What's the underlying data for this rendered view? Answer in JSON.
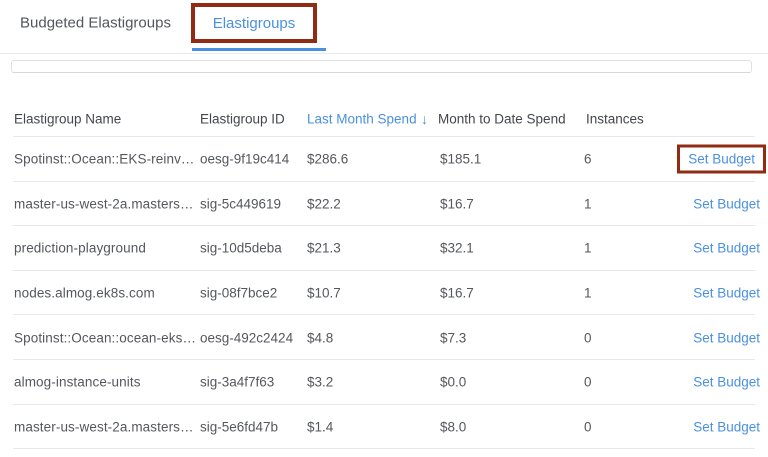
{
  "tabs": [
    {
      "label": "Budgeted Elastigroups",
      "active": false
    },
    {
      "label": "Elastigroups",
      "active": true,
      "annotated": true
    }
  ],
  "colors": {
    "accent_blue": "#4a90e2",
    "annotation_red": "#922b13"
  },
  "table": {
    "headers": {
      "name": "Elastigroup Name",
      "id": "Elastigroup ID",
      "last_month": "Last Month Spend",
      "sort_icon": "↓",
      "month_to_date": "Month to Date Spend",
      "instances": "Instances"
    },
    "rows": [
      {
        "name": "Spotinst::Ocean::EKS-reinv…",
        "id": "oesg-9f19c414",
        "last_month": "$286.6",
        "month_to_date": "$185.1",
        "instances": "6",
        "action": "Set Budget",
        "annotated": true
      },
      {
        "name": "master-us-west-2a.masters…",
        "id": "sig-5c449619",
        "last_month": "$22.2",
        "month_to_date": "$16.7",
        "instances": "1",
        "action": "Set Budget",
        "annotated": false
      },
      {
        "name": "prediction-playground",
        "id": "sig-10d5deba",
        "last_month": "$21.3",
        "month_to_date": "$32.1",
        "instances": "1",
        "action": "Set Budget",
        "annotated": false
      },
      {
        "name": "nodes.almog.ek8s.com",
        "id": "sig-08f7bce2",
        "last_month": "$10.7",
        "month_to_date": "$16.7",
        "instances": "1",
        "action": "Set Budget",
        "annotated": false
      },
      {
        "name": "Spotinst::Ocean::ocean-eks…",
        "id": "oesg-492c2424",
        "last_month": "$4.8",
        "month_to_date": "$7.3",
        "instances": "0",
        "action": "Set Budget",
        "annotated": false
      },
      {
        "name": "almog-instance-units",
        "id": "sig-3a4f7f63",
        "last_month": "$3.2",
        "month_to_date": "$0.0",
        "instances": "0",
        "action": "Set Budget",
        "annotated": false
      },
      {
        "name": "master-us-west-2a.masters…",
        "id": "sig-5e6fd47b",
        "last_month": "$1.4",
        "month_to_date": "$8.0",
        "instances": "0",
        "action": "Set Budget",
        "annotated": false
      }
    ]
  }
}
